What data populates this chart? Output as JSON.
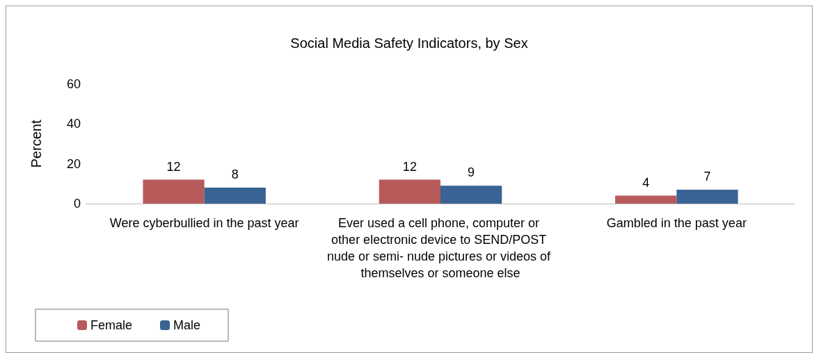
{
  "chart_data": {
    "type": "bar",
    "title": "Social Media Safety Indicators, by Sex",
    "ylabel": "Percent",
    "categories": [
      "Were cyberbullied in the past year",
      "Ever used a cell phone, computer or other electronic device to SEND/POST nude or semi- nude pictures or videos of themselves or someone else",
      "Gambled in the past year"
    ],
    "series": [
      {
        "name": "Female",
        "color": "#b85a5a",
        "values": [
          12,
          12,
          4
        ]
      },
      {
        "name": "Male",
        "color": "#386394",
        "values": [
          8,
          9,
          7
        ]
      }
    ],
    "ylim": [
      0,
      60
    ],
    "yticks": [
      0,
      20,
      40,
      60
    ],
    "grid": false,
    "legend": "bottom left",
    "data_labels": true
  }
}
